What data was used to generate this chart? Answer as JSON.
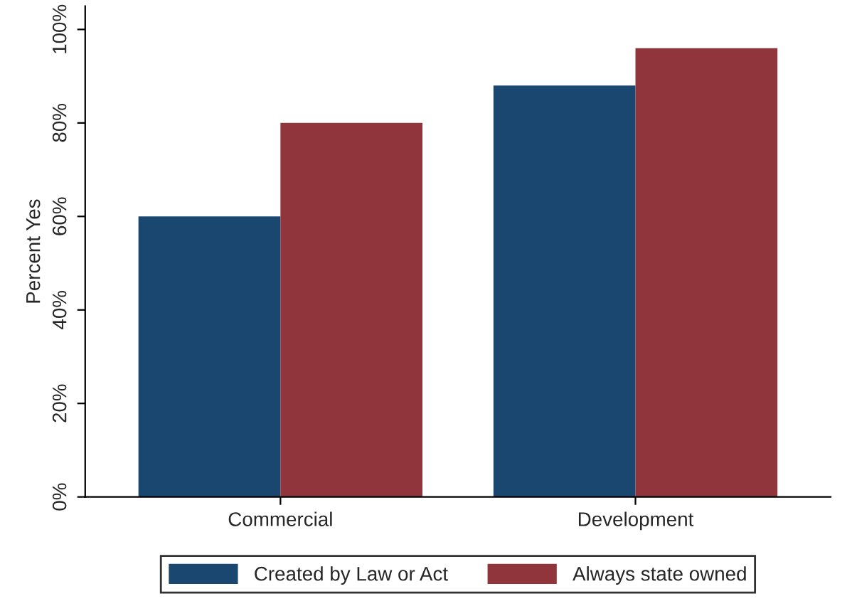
{
  "chart_data": {
    "type": "bar",
    "ylabel": "Percent Yes",
    "categories": [
      "Commercial",
      "Development"
    ],
    "series": [
      {
        "name": "Created by Law or Act",
        "color": "#1a476f",
        "values": [
          60,
          88
        ]
      },
      {
        "name": "Always state owned",
        "color": "#90353b",
        "values": [
          80,
          96
        ]
      }
    ],
    "ylim": [
      0,
      105
    ],
    "yticks": [
      {
        "value": 0,
        "label": "0%"
      },
      {
        "value": 20,
        "label": "20%"
      },
      {
        "value": 40,
        "label": "40%"
      },
      {
        "value": 60,
        "label": "60%"
      },
      {
        "value": 80,
        "label": "80%"
      },
      {
        "value": 100,
        "label": "100%"
      }
    ],
    "grid": false,
    "legend": "bottom"
  }
}
